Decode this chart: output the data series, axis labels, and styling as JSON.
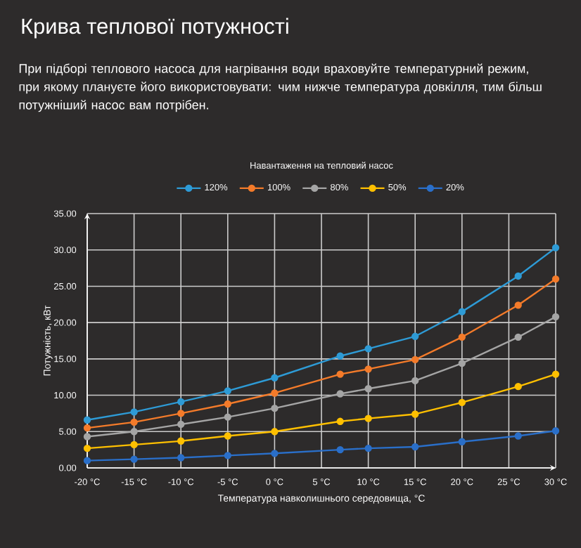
{
  "chart_data": {
    "type": "line",
    "title": "Крива теплової потужності",
    "subtitle": "При підборі теплового насоса для нагрівання води враховуйте температурний режим, при якому плануєте його використовувати: чим нижче температура довкілля, тим більш потужніший насос вам потрібен.",
    "xlabel": "Температура навколишнього середовища, °C",
    "ylabel": "Потужність, кВт",
    "legend_title": "Навантаження на тепловий насос",
    "x": [
      -20,
      -15,
      -10,
      -5,
      0,
      7,
      10,
      15,
      20,
      26,
      30
    ],
    "series": [
      {
        "name": "120%",
        "color": "#2e9bd6",
        "values": [
          6.6,
          7.7,
          9.1,
          10.6,
          12.4,
          15.4,
          16.4,
          18.1,
          21.5,
          26.4,
          30.3
        ]
      },
      {
        "name": "100%",
        "color": "#f47b2a",
        "values": [
          5.5,
          6.3,
          7.5,
          8.8,
          10.3,
          12.9,
          13.6,
          14.9,
          18.0,
          22.4,
          26.0
        ]
      },
      {
        "name": "80%",
        "color": "#a5a5a5",
        "values": [
          4.3,
          5.0,
          6.0,
          7.0,
          8.2,
          10.2,
          10.9,
          12.0,
          14.4,
          18.0,
          20.8
        ]
      },
      {
        "name": "50%",
        "color": "#ffc000",
        "values": [
          2.7,
          3.2,
          3.7,
          4.4,
          5.0,
          6.4,
          6.8,
          7.4,
          9.0,
          11.2,
          12.9
        ]
      },
      {
        "name": "20%",
        "color": "#2a6fc9",
        "values": [
          1.0,
          1.2,
          1.4,
          1.7,
          2.0,
          2.5,
          2.7,
          2.9,
          3.6,
          4.4,
          5.1
        ]
      }
    ],
    "xlim": [
      -20,
      30
    ],
    "xticks": [
      {
        "value": -20,
        "label": "-20 °C"
      },
      {
        "value": -15,
        "label": "-15 °C"
      },
      {
        "value": -10,
        "label": "-10 °C"
      },
      {
        "value": -5,
        "label": "-5 °C"
      },
      {
        "value": 0,
        "label": "0 °C"
      },
      {
        "value": 5,
        "label": "5 °C"
      },
      {
        "value": 10,
        "label": "10 °C"
      },
      {
        "value": 15,
        "label": "15 °C"
      },
      {
        "value": 20,
        "label": "20 °C"
      },
      {
        "value": 25,
        "label": "25 °C"
      },
      {
        "value": 30,
        "label": "30 °C"
      }
    ],
    "ylim": [
      0,
      35
    ],
    "yticks": [
      {
        "value": 0,
        "label": "0.00"
      },
      {
        "value": 5,
        "label": "5.00"
      },
      {
        "value": 10,
        "label": "10.00"
      },
      {
        "value": 15,
        "label": "15.00"
      },
      {
        "value": 20,
        "label": "20.00"
      },
      {
        "value": 25,
        "label": "25.00"
      },
      {
        "value": 30,
        "label": "30.00"
      },
      {
        "value": 35,
        "label": "35.00"
      }
    ],
    "grid": true,
    "legend": "top",
    "marker": "circle"
  }
}
